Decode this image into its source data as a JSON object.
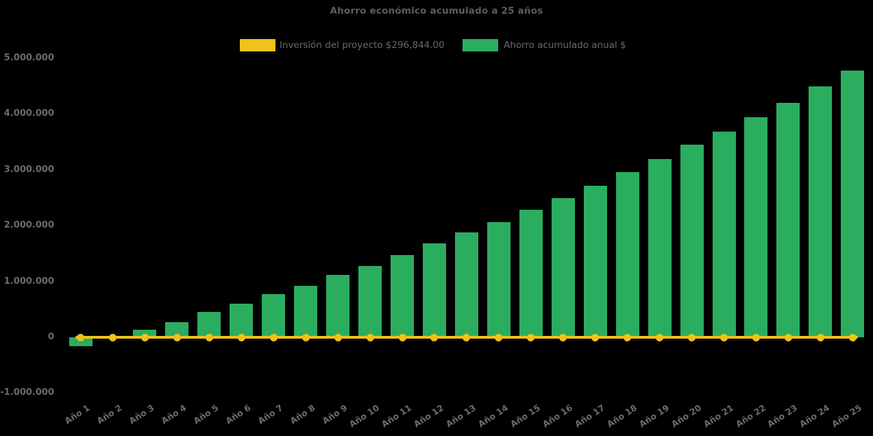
{
  "title": "Ahorro económico acumulado a 25 años",
  "colors": {
    "background": "#000000",
    "bar_green": "#2BAD5F",
    "line_yellow": "#EEC21A",
    "text_gray": "#6b6b6b",
    "title_gray": "#5d5d5d"
  },
  "legend": {
    "items": [
      {
        "label": "Inversión del proyecto $296,844.00",
        "color": "#EEC21A",
        "type": "line"
      },
      {
        "label": "Ahorro acumulado anual $",
        "color": "#2BAD5F",
        "type": "bar"
      }
    ]
  },
  "chart_data": {
    "type": "bar",
    "title": "Ahorro económico acumulado a 25 años",
    "xlabel": "",
    "ylabel": "",
    "grid": false,
    "legend_position": "top",
    "ylim": [
      -1000000,
      5000000
    ],
    "y_ticks": [
      5000000,
      4000000,
      3000000,
      2000000,
      1000000,
      0,
      -1000000
    ],
    "y_tick_labels": [
      "5.000.000",
      "4.000.000",
      "3.000.000",
      "2.000.000",
      "1.000.000",
      "0",
      "-1.000.000"
    ],
    "categories": [
      "Año 1",
      "Año 2",
      "Año 3",
      "Año 4",
      "Año 5",
      "Año 6",
      "Año 7",
      "Año 8",
      "Año 9",
      "Año 10",
      "Año 11",
      "Año 12",
      "Año 13",
      "Año 14",
      "Año 15",
      "Año 16",
      "Año 17",
      "Año 18",
      "Año 19",
      "Año 20",
      "Año 21",
      "Año 22",
      "Año 23",
      "Año 24",
      "Año 25"
    ],
    "series": [
      {
        "name": "Inversión del proyecto $296,844.00",
        "type": "line",
        "color": "#EEC21A",
        "marker": "circle",
        "values": [
          0,
          0,
          0,
          0,
          0,
          0,
          0,
          0,
          0,
          0,
          0,
          0,
          0,
          0,
          0,
          0,
          0,
          0,
          0,
          0,
          0,
          0,
          0,
          0,
          0
        ]
      },
      {
        "name": "Ahorro acumulado anual $",
        "type": "bar",
        "color": "#2BAD5F",
        "values": [
          -160000,
          -10000,
          140000,
          270000,
          450000,
          600000,
          770000,
          925000,
          1120000,
          1280000,
          1480000,
          1680000,
          1880000,
          2070000,
          2280000,
          2500000,
          2720000,
          2960000,
          3190000,
          3450000,
          3680000,
          3940000,
          4200000,
          4500000,
          4780000
        ]
      }
    ]
  }
}
